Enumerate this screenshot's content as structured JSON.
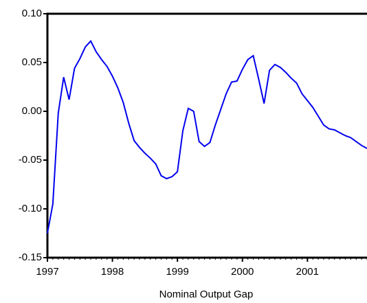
{
  "chart_data": {
    "type": "line",
    "title": "Nominal Output Gap",
    "categories": [
      "1997",
      null,
      null,
      null,
      null,
      null,
      null,
      null,
      null,
      null,
      null,
      null,
      "1998",
      null,
      null,
      null,
      null,
      null,
      null,
      null,
      null,
      null,
      null,
      null,
      "1999",
      null,
      null,
      null,
      null,
      null,
      null,
      null,
      null,
      null,
      null,
      null,
      "2000",
      null,
      null,
      null,
      null,
      null,
      null,
      null,
      null,
      null,
      null,
      null,
      "2001",
      null,
      null,
      null,
      null,
      null,
      null,
      null,
      null,
      null,
      null,
      null
    ],
    "series": [
      {
        "color": "#0000ee",
        "values": [
          -0.125,
          -0.095,
          -0.002,
          0.035,
          0.012,
          0.044,
          0.054,
          0.066,
          0.072,
          0.061,
          0.053,
          0.046,
          0.036,
          0.024,
          0.009,
          -0.012,
          -0.03,
          -0.037,
          -0.043,
          -0.048,
          -0.054,
          -0.066,
          -0.069,
          -0.067,
          -0.062,
          -0.02,
          0.003,
          0.0,
          -0.031,
          -0.036,
          -0.032,
          -0.014,
          0.002,
          0.018,
          0.03,
          0.031,
          0.043,
          0.053,
          0.057,
          0.033,
          0.008,
          0.042,
          0.048,
          0.045,
          0.04,
          0.034,
          0.029,
          0.018,
          0.011,
          0.004,
          -0.005,
          -0.014,
          -0.018,
          -0.019,
          -0.022,
          -0.025,
          -0.027,
          -0.031,
          -0.035,
          -0.038
        ]
      }
    ],
    "ylim": [
      -0.15,
      0.1
    ],
    "yticks": [
      {
        "value": -0.15,
        "label": "-0.15"
      },
      {
        "value": -0.1,
        "label": "-0.10"
      },
      {
        "value": -0.05,
        "label": "-0.05"
      },
      {
        "value": 0,
        "label": "0.00"
      },
      {
        "value": 0.05,
        "label": "0.05"
      },
      {
        "value": 0.1,
        "label": "0.10"
      }
    ]
  }
}
